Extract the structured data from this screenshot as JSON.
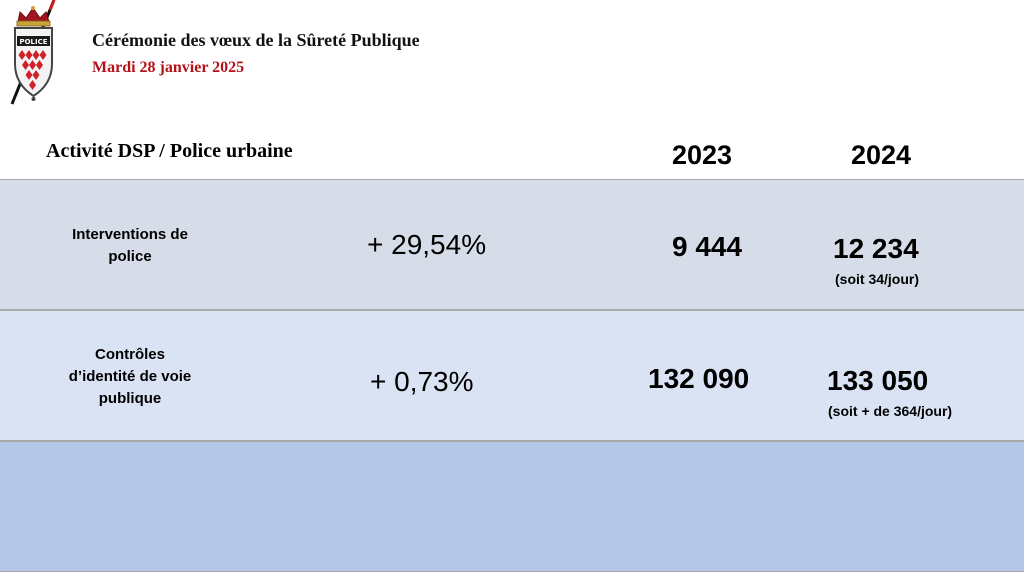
{
  "header": {
    "title": "Cérémonie des vœux de la Sûreté Publique",
    "date": "Mardi 28 janvier 2025",
    "logo_text": "POLICE",
    "colors": {
      "title": "#111111",
      "date": "#b3121a"
    },
    "logo_icon": "police-shield-crest"
  },
  "table": {
    "heading": "Activité DSP / Police urbaine",
    "years": [
      "2023",
      "2024"
    ],
    "rows": [
      {
        "label_lines": [
          "Interventions de",
          "police"
        ],
        "change": "+ 29,54%",
        "value_2023": "9 444",
        "value_2024": "12 234",
        "note_2024": "(soit 34/jour)",
        "background": "#d6dde8"
      },
      {
        "label_lines": [
          "Contrôles",
          "d’identité de voie",
          "publique"
        ],
        "change": "+ 0,73%",
        "value_2023": "132 090",
        "value_2024": "133 050",
        "note_2024": "(soit + de 364/jour)",
        "background": "#dae3f3"
      }
    ],
    "empty_row_background": "#b4c7e7"
  }
}
